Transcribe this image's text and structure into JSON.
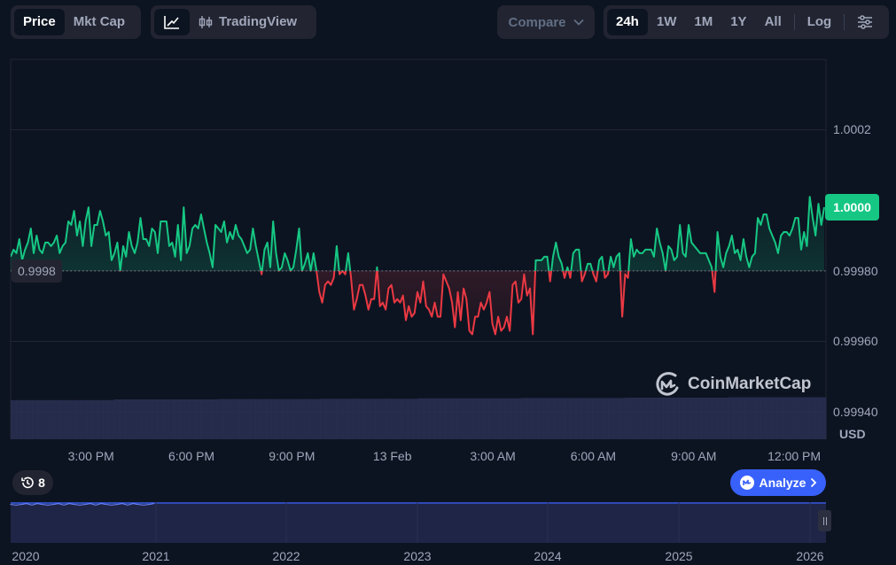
{
  "toolbar": {
    "type_tabs": [
      "Price",
      "Mkt Cap"
    ],
    "active_type": "Price",
    "tradingview_label": "TradingView",
    "compare_label": "Compare",
    "ranges": [
      "24h",
      "1W",
      "1M",
      "1Y",
      "All"
    ],
    "active_range": "24h",
    "log_label": "Log"
  },
  "chart_data": {
    "type": "line",
    "y_ticks": [
      "1.0002",
      "0.99980",
      "0.99960",
      "0.99940"
    ],
    "y_tick_values": [
      1.0002,
      0.9998,
      0.9996,
      0.9994
    ],
    "ylim": [
      0.9993,
      1.0004
    ],
    "x_ticks": [
      "3:00 PM",
      "6:00 PM",
      "9:00 PM",
      "13 Feb",
      "3:00 AM",
      "6:00 AM",
      "9:00 AM",
      "12:00 PM"
    ],
    "x_tick_hours": [
      3,
      6,
      9,
      12,
      15,
      18,
      21,
      24
    ],
    "x_range_hours": [
      0.6,
      24.95
    ],
    "reference_price": 0.9998,
    "reference_label": "0.9998",
    "current_price_label": "1.0000",
    "currency_label": "USD",
    "up_color": "#16c784",
    "down_color": "#ea3943",
    "series": [
      {
        "prices": [
          0.99984,
          0.99986,
          0.99985,
          0.99989,
          0.99983,
          0.99986,
          0.99988,
          0.99992,
          0.99985,
          0.9999,
          0.99986,
          0.99985,
          0.99988,
          0.99988,
          0.99987,
          0.99988,
          0.9999,
          0.99985,
          0.99987,
          0.99988,
          0.99994,
          0.99993,
          0.99997,
          0.9999,
          0.99994,
          0.99987,
          0.99994,
          0.99998,
          0.99987,
          0.99993,
          0.99993,
          0.99997,
          0.99994,
          0.9999,
          0.99991,
          0.99983,
          0.99985,
          0.99988,
          0.9998,
          0.99987,
          0.99984,
          0.99991,
          0.99987,
          0.99985,
          0.99988,
          0.99995,
          0.99989,
          0.99989,
          0.99987,
          0.99992,
          0.99991,
          0.99985,
          0.99994,
          0.99994,
          0.99994,
          0.99987,
          0.99988,
          0.99984,
          0.99993,
          0.99983,
          0.99998,
          0.99985,
          0.99987,
          0.99992,
          0.99993,
          0.99992,
          0.99996,
          0.99992,
          0.99988,
          0.99985,
          0.99981,
          0.99993,
          0.99992,
          0.99991,
          0.99994,
          0.99988,
          0.99991,
          0.99989,
          0.99993,
          0.9999,
          0.99989,
          0.99987,
          0.99985,
          0.99986,
          0.99992,
          0.99987,
          0.99983,
          0.99979,
          0.99986,
          0.99988,
          0.99981,
          0.99994,
          0.99985,
          0.9998,
          0.99981,
          0.99985,
          0.99983,
          0.9998,
          0.99981,
          0.99986,
          0.99992,
          0.9998,
          0.99982,
          0.99985,
          0.9998,
          0.99985,
          0.9998,
          0.99974,
          0.99971,
          0.99976,
          0.99977,
          0.99976,
          0.99978,
          0.99987,
          0.99979,
          0.9998,
          0.99979,
          0.99985,
          0.99978,
          0.99969,
          0.99972,
          0.99976,
          0.99976,
          0.99973,
          0.99969,
          0.99972,
          0.99972,
          0.99981,
          0.9997,
          0.99971,
          0.99969,
          0.99975,
          0.99976,
          0.99971,
          0.99972,
          0.99971,
          0.99973,
          0.99966,
          0.9997,
          0.99967,
          0.99968,
          0.99974,
          0.99971,
          0.99977,
          0.9997,
          0.99969,
          0.99967,
          0.99971,
          0.99967,
          0.99967,
          0.99979,
          0.99977,
          0.99975,
          0.99971,
          0.99964,
          0.99974,
          0.99966,
          0.99975,
          0.99972,
          0.99963,
          0.99962,
          0.99967,
          0.99967,
          0.99971,
          0.99969,
          0.99971,
          0.99974,
          0.99965,
          0.99962,
          0.99967,
          0.99963,
          0.99964,
          0.99967,
          0.99963,
          0.99976,
          0.99977,
          0.99971,
          0.99972,
          0.99979,
          0.99973,
          0.99975,
          0.99962,
          0.99983,
          0.99983,
          0.99983,
          0.99984,
          0.99984,
          0.99977,
          0.99984,
          0.99988,
          0.99984,
          0.99982,
          0.99978,
          0.99981,
          0.99978,
          0.99985,
          0.99986,
          0.99986,
          0.99977,
          0.99979,
          0.99982,
          0.99982,
          0.99979,
          0.99977,
          0.99983,
          0.99984,
          0.99978,
          0.99979,
          0.99984,
          0.99981,
          0.99984,
          0.99985,
          0.99967,
          0.99979,
          0.99978,
          0.99989,
          0.99984,
          0.99986,
          0.99985,
          0.99985,
          0.99986,
          0.99986,
          0.99986,
          0.99984,
          0.99992,
          0.99988,
          0.99985,
          0.9998,
          0.99987,
          0.99986,
          0.99983,
          0.99984,
          0.99993,
          0.99985,
          0.99984,
          0.99993,
          0.99988,
          0.99987,
          0.99986,
          0.99985,
          0.99985,
          0.99985,
          0.99983,
          0.99981,
          0.99974,
          0.99991,
          0.99984,
          0.99981,
          0.99985,
          0.99987,
          0.9999,
          0.99985,
          0.99986,
          0.99983,
          0.99989,
          0.99984,
          0.99981,
          0.99984,
          0.99985,
          0.99995,
          0.99993,
          0.99996,
          0.99996,
          0.99992,
          0.9999,
          0.99988,
          0.99985,
          0.9999,
          0.99991,
          0.99991,
          0.9999,
          0.99992,
          0.99995,
          0.99995,
          0.99986,
          0.99991,
          0.99987,
          1.00001,
          0.99995,
          0.9999,
          0.99999,
          0.99993,
          0.99998
        ]
      }
    ],
    "volume_levels": [
      0.28,
      0.3,
      0.31,
      0.32,
      0.33,
      0.34,
      0.35,
      0.36
    ]
  },
  "navigator": {
    "years": [
      "2020",
      "2021",
      "2022",
      "2023",
      "2024",
      "2025",
      "2026"
    ]
  },
  "watermark": "CoinMarketCap",
  "history_count": "8",
  "analyze_label": "Analyze"
}
